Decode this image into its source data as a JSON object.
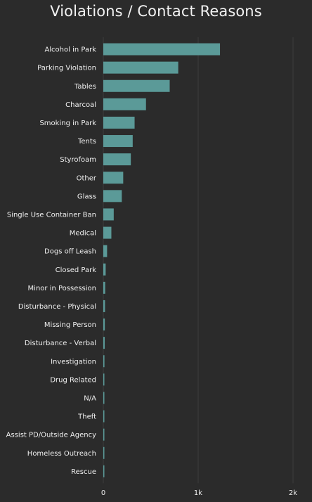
{
  "chart_data": {
    "type": "bar",
    "orientation": "horizontal",
    "title": "Violations / Contact Reasons",
    "xlabel": "",
    "ylabel": "",
    "xlim": [
      0,
      2000
    ],
    "x_ticks": [
      0,
      1000,
      2000
    ],
    "x_tick_labels": [
      "0",
      "1k",
      "2k"
    ],
    "grid": true,
    "colors": {
      "bar": "#5b9a98",
      "background": "#2b2b2b",
      "text": "#f0f0f0"
    },
    "categories": [
      "Alcohol in Park",
      "Parking Violation",
      "Tables",
      "Charcoal",
      "Smoking in Park",
      "Tents",
      "Styrofoam",
      "Other",
      "Glass",
      "Single Use Container Ban",
      "Medical",
      "Dogs off Leash",
      "Closed Park",
      "Minor in Possession",
      "Disturbance - Physical",
      "Missing Person",
      "Disturbance - Verbal",
      "Investigation",
      "Drug Related",
      "N/A",
      "Theft",
      "Assist PD/Outside Agency",
      "Homeless Outreach",
      "Rescue"
    ],
    "values": [
      1230,
      790,
      700,
      450,
      330,
      310,
      290,
      210,
      195,
      110,
      85,
      40,
      25,
      20,
      18,
      16,
      15,
      12,
      10,
      8,
      7,
      5,
      4,
      3
    ]
  }
}
